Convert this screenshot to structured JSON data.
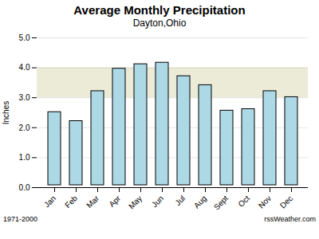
{
  "chart_data": {
    "type": "bar",
    "title": "Average Monthly Precipitation",
    "subtitle": "Dayton,Ohio",
    "categories": [
      "Jan",
      "Feb",
      "Mar",
      "Apr",
      "May",
      "Jun",
      "Jul",
      "Aug",
      "Sept",
      "Oct",
      "Nov",
      "Dec"
    ],
    "values": [
      2.6,
      2.3,
      3.3,
      4.05,
      4.2,
      4.25,
      3.8,
      3.5,
      2.65,
      2.7,
      3.3,
      3.1
    ],
    "color": "#add8e6",
    "ylabel": "Inches",
    "ylim": [
      0.0,
      5.0
    ],
    "yticks": [
      {
        "value": 0.0,
        "label": "0.0"
      },
      {
        "value": 1.0,
        "label": "1.0"
      },
      {
        "value": 2.0,
        "label": "2.0"
      },
      {
        "value": 3.0,
        "label": "3.0"
      },
      {
        "value": 4.0,
        "label": "4.0"
      },
      {
        "value": 5.0,
        "label": "5.0"
      }
    ],
    "grid": true,
    "band": {
      "y": [
        3.0,
        4.0
      ],
      "color": "#ebebd8"
    },
    "annotations": [
      "1971-2000",
      "rssWeather.com"
    ]
  }
}
